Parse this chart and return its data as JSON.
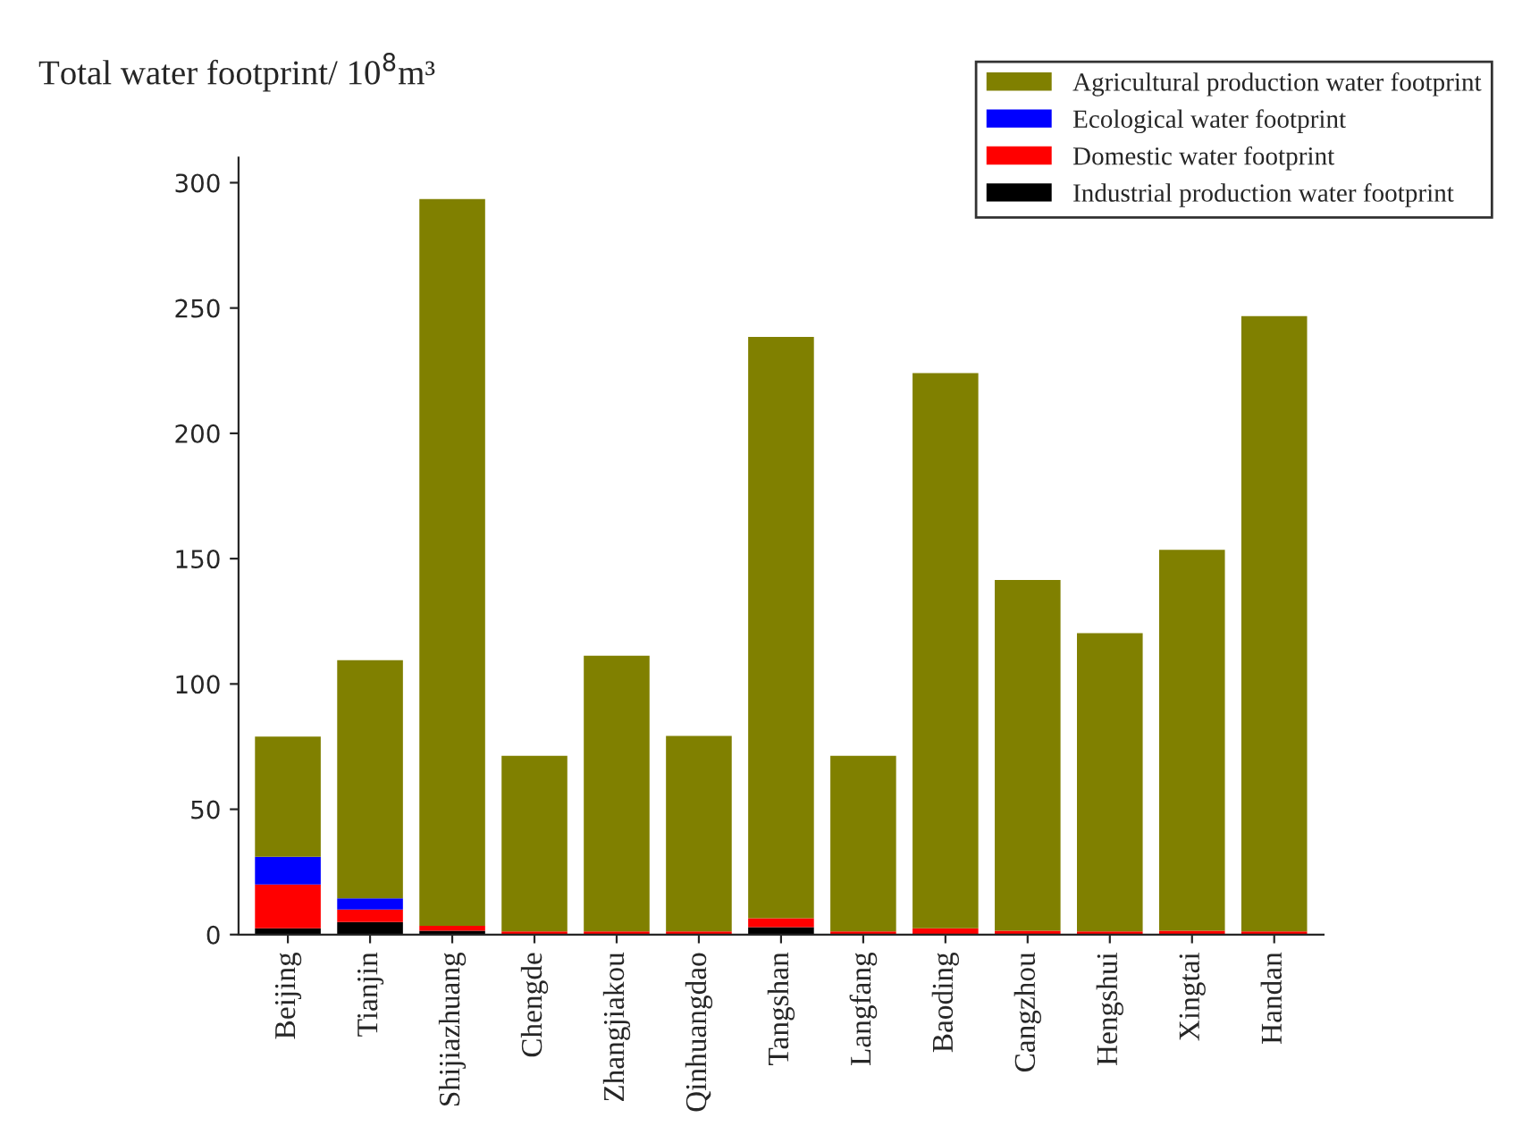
{
  "chart_data": {
    "type": "bar",
    "title": "Total water footprint/ 10$^{8}$m³",
    "categories": [
      "Beijing",
      "Tianjin",
      "Shijiazhuang",
      "Chengde",
      "Zhangjiakou",
      "Qinhuangdao",
      "Tangshan",
      "Langfang",
      "Baoding",
      "Cangzhou",
      "Hengshui",
      "Xingtai",
      "Handan"
    ],
    "stacked": true,
    "series": [
      {
        "name": "Industrial production water footprint",
        "color": "#000000",
        "values": [
          2.5,
          5,
          1.5,
          0.3,
          0.3,
          0.3,
          3,
          0.3,
          null,
          null,
          0.3,
          null,
          0.3
        ]
      },
      {
        "name": "Domestic water footprint",
        "color": "#ff0000",
        "values": [
          17.5,
          5,
          2,
          1,
          1,
          1,
          3.5,
          1,
          2.5,
          1.5,
          1,
          1.5,
          1
        ]
      },
      {
        "name": "Ecological water footprint",
        "color": "#0000ff",
        "values": [
          11,
          4.5,
          0,
          0,
          0,
          0,
          0,
          0,
          0,
          0,
          0,
          0,
          0
        ]
      },
      {
        "name": "Agricultural production water footprint",
        "color": "#808000",
        "values": [
          48,
          95,
          290,
          70,
          110,
          78,
          232,
          70,
          221.5,
          140,
          119,
          152,
          245.5
        ]
      }
    ],
    "ylim": [
      0,
      310
    ],
    "yticks": [
      0,
      50,
      100,
      150,
      200,
      250,
      300
    ],
    "grid": false,
    "legend": "top right"
  }
}
